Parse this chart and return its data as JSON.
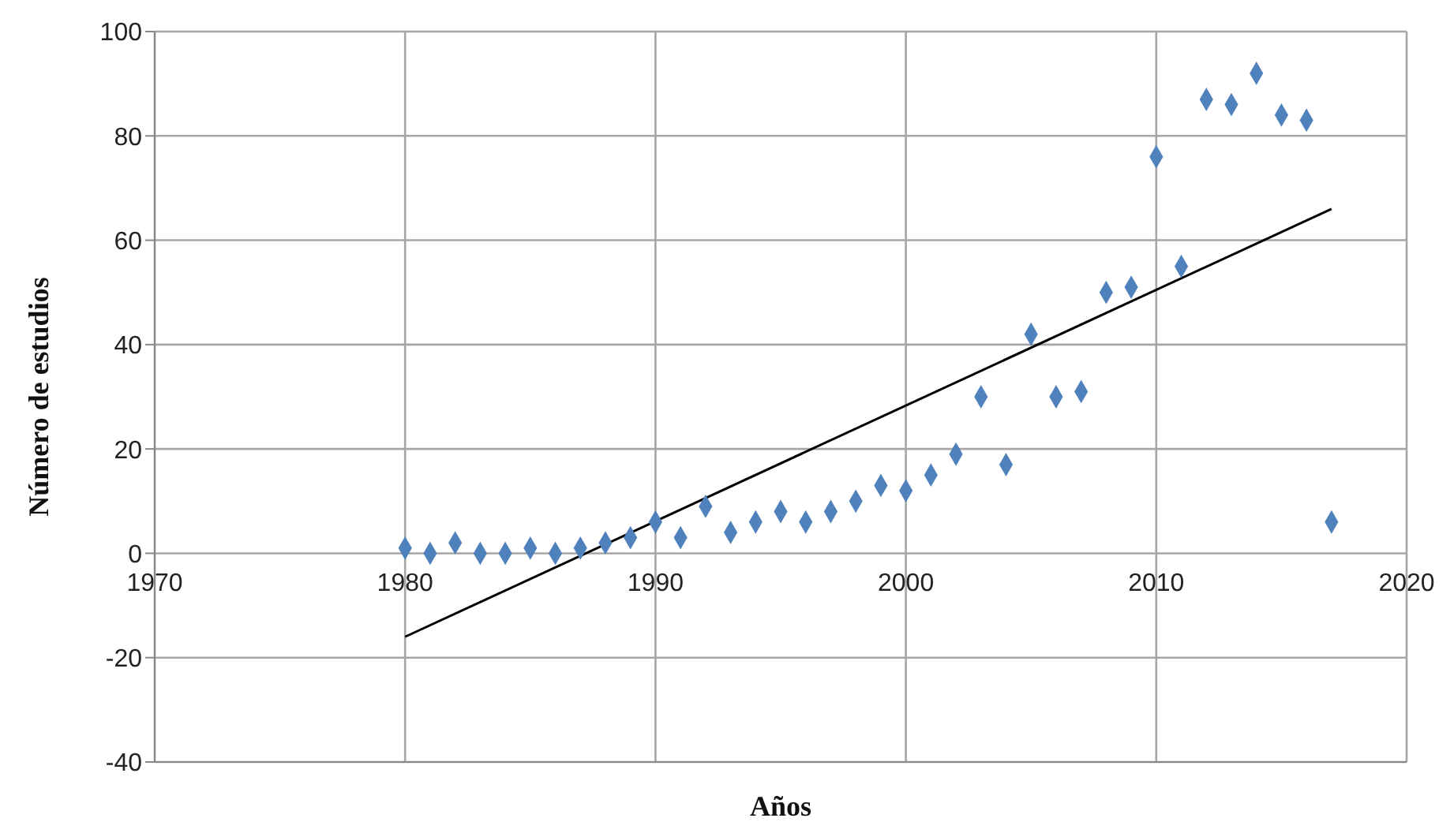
{
  "chart_data": {
    "type": "scatter",
    "xlabel": "Años",
    "ylabel": "Número de estudios",
    "xlim": [
      1970,
      2020
    ],
    "xticks": [
      1970,
      1980,
      1990,
      2000,
      2010,
      2020
    ],
    "ylim": [
      -40,
      100
    ],
    "yticks": [
      -40,
      -20,
      0,
      20,
      40,
      60,
      80,
      100
    ],
    "grid": true,
    "marker": "diamond",
    "x": [
      1980,
      1981,
      1982,
      1983,
      1984,
      1985,
      1986,
      1987,
      1988,
      1989,
      1990,
      1991,
      1992,
      1993,
      1994,
      1995,
      1996,
      1997,
      1998,
      1999,
      2000,
      2001,
      2002,
      2003,
      2004,
      2005,
      2006,
      2007,
      2008,
      2009,
      2010,
      2011,
      2012,
      2013,
      2014,
      2015,
      2016,
      2017
    ],
    "series": [
      {
        "color": "#4f81bd",
        "values": [
          1,
          0,
          2,
          0,
          0,
          1,
          0,
          1,
          2,
          3,
          6,
          3,
          9,
          4,
          6,
          8,
          6,
          8,
          10,
          13,
          12,
          15,
          19,
          30,
          17,
          42,
          30,
          31,
          50,
          51,
          76,
          55,
          87,
          86,
          92,
          84,
          83,
          6
        ]
      },
      {
        "type": "line",
        "color": "#000000",
        "x": [
          1980,
          2017
        ],
        "values": [
          -16,
          66
        ],
        "marker": "none",
        "line_style": "solid"
      }
    ]
  }
}
